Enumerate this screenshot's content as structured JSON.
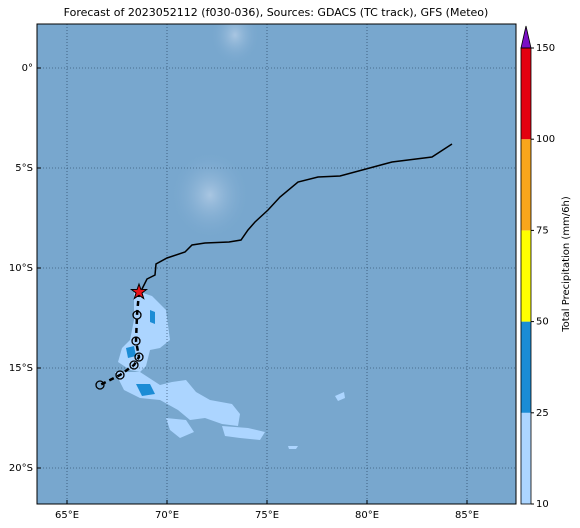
{
  "map": {
    "title": "Forecast of 2023052112 (f030-036), Sources: GDACS (TC track), GFS (Meteo)",
    "xlim": [
      63.5,
      87.45
    ],
    "ylim": [
      -21.8,
      2.2
    ],
    "xticks": [
      {
        "value": 65,
        "label": "65°E"
      },
      {
        "value": 70,
        "label": "70°E"
      },
      {
        "value": 75,
        "label": "75°E"
      },
      {
        "value": 80,
        "label": "80°E"
      },
      {
        "value": 85,
        "label": "85°E"
      }
    ],
    "yticks": [
      {
        "value": 0,
        "label": "0°"
      },
      {
        "value": -5,
        "label": "5°S"
      },
      {
        "value": -10,
        "label": "10°S"
      },
      {
        "value": -15,
        "label": "15°S"
      },
      {
        "value": -20,
        "label": "20°S"
      }
    ],
    "grid": true,
    "track": {
      "lon": [
        84.25,
        83.25,
        81.25,
        78.65,
        77.55,
        76.55,
        75.65,
        75.05,
        74.4,
        74.05,
        73.7,
        73.1,
        71.9,
        71.25,
        70.9,
        70.0,
        69.45,
        69.4,
        69.0,
        68.75,
        68.6
      ],
      "lat": [
        -3.8,
        -4.45,
        -4.7,
        -5.4,
        -5.45,
        -5.7,
        -6.45,
        -7.1,
        -7.7,
        -8.1,
        -8.6,
        -8.7,
        -8.75,
        -8.85,
        -9.2,
        -9.5,
        -9.8,
        -10.35,
        -10.55,
        -11.05,
        -11.2
      ],
      "color": "#000000"
    },
    "current": {
      "lon": 68.6,
      "lat": -11.2,
      "color": "#e8141c"
    },
    "forecast": {
      "lon": [
        68.5,
        68.45,
        68.6,
        68.35,
        67.65,
        66.65
      ],
      "lat": [
        -12.35,
        -13.65,
        -14.45,
        -14.85,
        -15.35,
        -15.85
      ]
    },
    "colorbar": {
      "label": "Total Precipitation (mm/6h)",
      "levels": [
        10,
        25,
        50,
        75,
        100,
        150
      ],
      "colors": [
        "#acd5ff",
        "#1b8cd5",
        "#ffff00",
        "#f9a61c",
        "#e3000f"
      ],
      "extend_color": "#7a0fc4"
    }
  }
}
